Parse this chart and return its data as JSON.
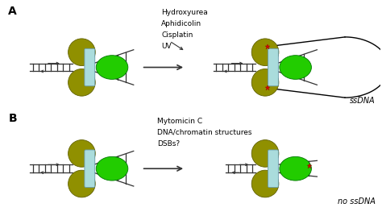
{
  "bg_color": "#ffffff",
  "label_A": "A",
  "label_B": "B",
  "olive": "#909000",
  "green": "#22cc00",
  "ltblue": "#aadcdc",
  "red": "#dd0000",
  "lc": "#333333",
  "drugs_A": [
    "Hydroxyurea",
    "Aphidicolin",
    "Cisplatin",
    "UV"
  ],
  "drugs_B": [
    "Mytomicin C",
    "DNA/chromatin structures",
    "DSBs?"
  ],
  "ssDNA_label": "ssDNA",
  "no_ssDNA_label": "no ssDNA"
}
